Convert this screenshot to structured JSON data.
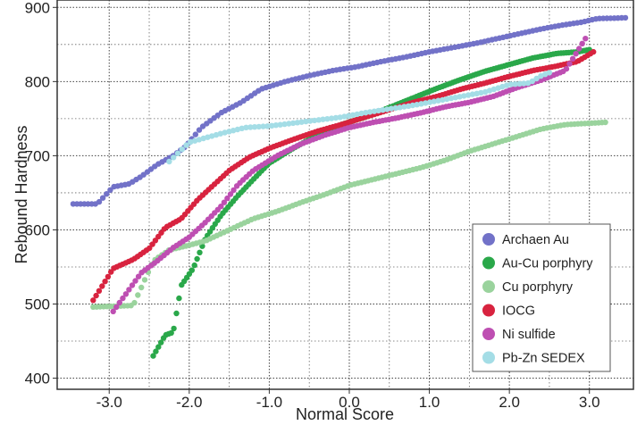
{
  "chart_data": {
    "type": "scatter",
    "xlabel": "Normal Score",
    "ylabel": "Rebound Hardness",
    "xlim": [
      -3.65,
      3.55
    ],
    "ylim": [
      385,
      910
    ],
    "x_ticks": [
      -3.0,
      -2.0,
      -1.0,
      0.0,
      1.0,
      2.0,
      3.0
    ],
    "x_tick_labels": [
      "-3.0",
      "-2.0",
      "-1.0",
      "0.0",
      "1.0",
      "2.0",
      "3.0"
    ],
    "x_minor_gridlines": [
      -2.5,
      -1.5,
      -0.5,
      0.5,
      1.5,
      2.5
    ],
    "y_ticks": [
      400,
      500,
      600,
      700,
      800,
      900
    ],
    "y_tick_labels": [
      "400",
      "500",
      "600",
      "700",
      "800",
      "900"
    ],
    "y_minor_gridlines": [
      450,
      550,
      650,
      750,
      850
    ],
    "grid": true,
    "legend_position": "bottom-right",
    "series": [
      {
        "name": "Archaen Au",
        "color": "#7272c8",
        "curve": [
          [
            -3.45,
            635
          ],
          [
            -3.15,
            635
          ],
          [
            -2.95,
            658
          ],
          [
            -2.75,
            662
          ],
          [
            -2.6,
            672
          ],
          [
            -2.4,
            688
          ],
          [
            -2.2,
            700
          ],
          [
            -2.05,
            712
          ],
          [
            -1.85,
            738
          ],
          [
            -1.6,
            758
          ],
          [
            -1.35,
            772
          ],
          [
            -1.1,
            790
          ],
          [
            -0.8,
            800
          ],
          [
            -0.5,
            808
          ],
          [
            -0.2,
            815
          ],
          [
            0.1,
            820
          ],
          [
            0.4,
            827
          ],
          [
            0.7,
            833
          ],
          [
            1.0,
            840
          ],
          [
            1.3,
            846
          ],
          [
            1.6,
            852
          ],
          [
            1.85,
            858
          ],
          [
            2.1,
            864
          ],
          [
            2.4,
            871
          ],
          [
            2.65,
            876
          ],
          [
            2.9,
            880
          ],
          [
            3.1,
            885
          ],
          [
            3.45,
            886
          ]
        ],
        "points": 150
      },
      {
        "name": "Au-Cu porphyry",
        "color": "#2aa84a",
        "curve": [
          [
            -2.45,
            430
          ],
          [
            -2.3,
            458
          ],
          [
            -2.2,
            462
          ],
          [
            -2.1,
            525
          ],
          [
            -1.95,
            548
          ],
          [
            -1.8,
            588
          ],
          [
            -1.6,
            620
          ],
          [
            -1.4,
            645
          ],
          [
            -1.2,
            668
          ],
          [
            -1.0,
            690
          ],
          [
            -0.7,
            710
          ],
          [
            -0.4,
            728
          ],
          [
            -0.1,
            742
          ],
          [
            0.2,
            752
          ],
          [
            0.5,
            765
          ],
          [
            0.8,
            778
          ],
          [
            1.1,
            791
          ],
          [
            1.4,
            803
          ],
          [
            1.7,
            814
          ],
          [
            2.0,
            823
          ],
          [
            2.3,
            832
          ],
          [
            2.6,
            838
          ],
          [
            2.85,
            840
          ],
          [
            3.0,
            843
          ]
        ],
        "points": 170
      },
      {
        "name": "Cu porphyry",
        "color": "#9ad39d",
        "curve": [
          [
            -3.2,
            496
          ],
          [
            -2.7,
            498
          ],
          [
            -2.45,
            558
          ],
          [
            -2.25,
            573
          ],
          [
            -2.05,
            578
          ],
          [
            -1.8,
            585
          ],
          [
            -1.5,
            600
          ],
          [
            -1.2,
            615
          ],
          [
            -0.9,
            625
          ],
          [
            -0.6,
            637
          ],
          [
            -0.3,
            648
          ],
          [
            0.0,
            660
          ],
          [
            0.3,
            668
          ],
          [
            0.6,
            676
          ],
          [
            0.9,
            684
          ],
          [
            1.2,
            694
          ],
          [
            1.5,
            706
          ],
          [
            1.8,
            716
          ],
          [
            2.1,
            726
          ],
          [
            2.4,
            736
          ],
          [
            2.7,
            742
          ],
          [
            3.2,
            745
          ]
        ],
        "points": 150
      },
      {
        "name": "IOCG",
        "color": "#d8233f",
        "curve": [
          [
            -3.2,
            505
          ],
          [
            -2.95,
            548
          ],
          [
            -2.7,
            560
          ],
          [
            -2.5,
            575
          ],
          [
            -2.3,
            603
          ],
          [
            -2.1,
            615
          ],
          [
            -1.9,
            640
          ],
          [
            -1.7,
            660
          ],
          [
            -1.5,
            680
          ],
          [
            -1.25,
            698
          ],
          [
            -1.0,
            710
          ],
          [
            -0.7,
            722
          ],
          [
            -0.4,
            733
          ],
          [
            -0.1,
            742
          ],
          [
            0.2,
            752
          ],
          [
            0.5,
            762
          ],
          [
            0.8,
            772
          ],
          [
            1.1,
            780
          ],
          [
            1.4,
            790
          ],
          [
            1.7,
            798
          ],
          [
            2.0,
            807
          ],
          [
            2.3,
            815
          ],
          [
            2.55,
            820
          ],
          [
            2.85,
            827
          ],
          [
            3.05,
            840
          ]
        ],
        "points": 170
      },
      {
        "name": "Ni sulfide",
        "color": "#be4fb2",
        "curve": [
          [
            -2.95,
            490
          ],
          [
            -2.6,
            542
          ],
          [
            -2.4,
            558
          ],
          [
            -2.2,
            576
          ],
          [
            -2.0,
            590
          ],
          [
            -1.8,
            610
          ],
          [
            -1.6,
            632
          ],
          [
            -1.4,
            660
          ],
          [
            -1.2,
            680
          ],
          [
            -0.9,
            700
          ],
          [
            -0.6,
            716
          ],
          [
            -0.3,
            728
          ],
          [
            0.0,
            738
          ],
          [
            0.3,
            745
          ],
          [
            0.6,
            751
          ],
          [
            0.9,
            758
          ],
          [
            1.2,
            766
          ],
          [
            1.5,
            772
          ],
          [
            1.8,
            780
          ],
          [
            2.1,
            792
          ],
          [
            2.4,
            802
          ],
          [
            2.7,
            815
          ],
          [
            2.95,
            858
          ]
        ],
        "points": 150
      },
      {
        "name": "Pb-Zn SEDEX",
        "color": "#a4dde6",
        "curve": [
          [
            -2.25,
            692
          ],
          [
            -2.0,
            718
          ],
          [
            -1.6,
            730
          ],
          [
            -1.3,
            738
          ],
          [
            -1.0,
            740
          ],
          [
            -0.7,
            744
          ],
          [
            -0.4,
            748
          ],
          [
            -0.1,
            752
          ],
          [
            0.2,
            758
          ],
          [
            0.5,
            763
          ],
          [
            0.8,
            768
          ],
          [
            1.1,
            774
          ],
          [
            1.4,
            780
          ],
          [
            1.7,
            786
          ],
          [
            2.0,
            796
          ],
          [
            2.25,
            798
          ],
          [
            2.4,
            808
          ],
          [
            2.5,
            812
          ]
        ],
        "points": 90
      }
    ]
  }
}
